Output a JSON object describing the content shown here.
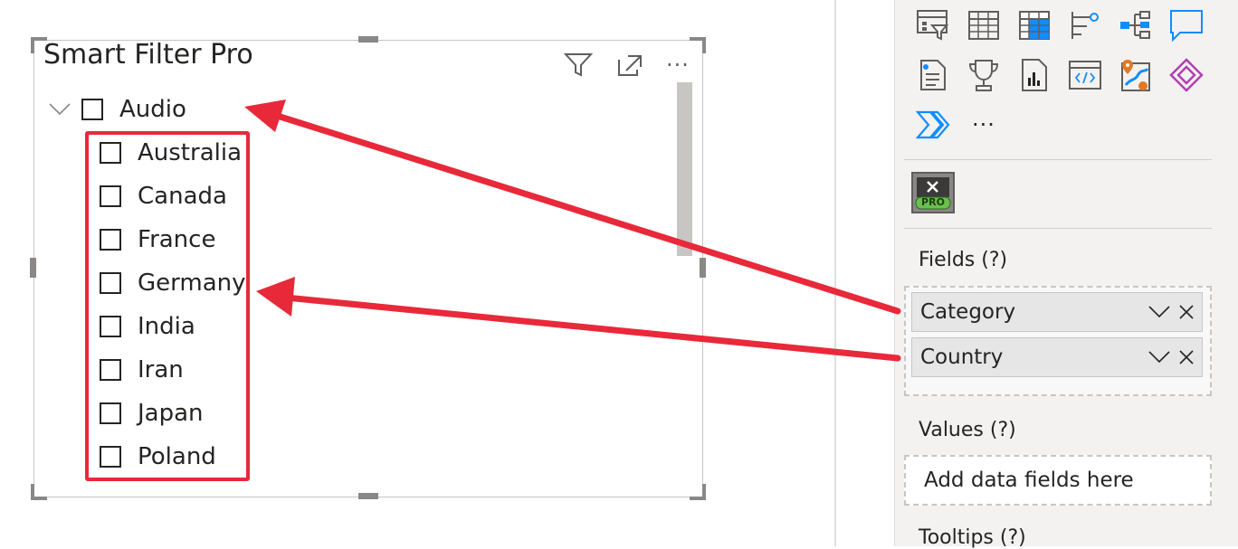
{
  "visual": {
    "title": "Smart Filter Pro",
    "header_icons": [
      "filter-icon",
      "focus-mode-icon",
      "more-options-icon"
    ],
    "more_glyph": "···"
  },
  "tree": {
    "parent": {
      "label": "Audio",
      "expanded": true,
      "checked": false
    },
    "children": [
      {
        "label": "Australia",
        "checked": false
      },
      {
        "label": "Canada",
        "checked": false
      },
      {
        "label": "France",
        "checked": false
      },
      {
        "label": "Germany",
        "checked": false
      },
      {
        "label": "India",
        "checked": false
      },
      {
        "label": "Iran",
        "checked": false
      },
      {
        "label": "Japan",
        "checked": false
      },
      {
        "label": "Poland",
        "checked": false
      }
    ]
  },
  "pane": {
    "viz_icons_row1": [
      "slicer-icon",
      "table-icon",
      "matrix-icon",
      "key-influencers-icon",
      "decomposition-tree-icon",
      "qna-icon"
    ],
    "viz_icons_row2": [
      "smart-narrative-icon",
      "goals-icon",
      "paginated-report-icon",
      "html-viewer-icon",
      "azure-map-icon",
      "power-apps-icon"
    ],
    "viz_icons_row3": [
      "power-automate-icon",
      "more-visuals-icon"
    ],
    "more_glyph": "···",
    "custom_visual": {
      "badge": "PRO"
    },
    "fields_label": "Fields (?)",
    "fields": [
      {
        "label": "Category"
      },
      {
        "label": "Country"
      }
    ],
    "values_label": "Values (?)",
    "values_placeholder": "Add data fields here",
    "tooltips_label": "Tooltips (?)"
  },
  "colors": {
    "accent_red": "#e8293a",
    "power_bi_blue": "#118dff",
    "pro_green": "#6cbf4f"
  }
}
